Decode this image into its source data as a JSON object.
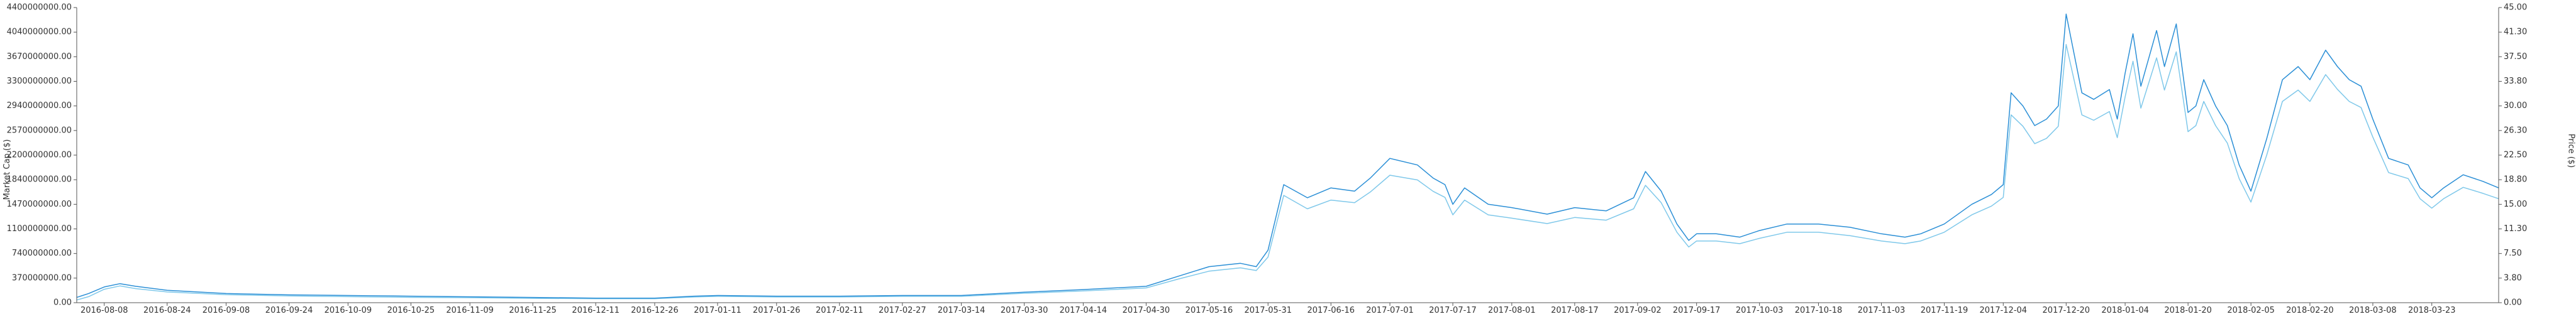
{
  "chart_data": {
    "type": "line",
    "title": "",
    "xlabel": "",
    "ylabel_left": "Market Cap ($)",
    "ylabel_right": "Price ($)",
    "grid": false,
    "legend": "none",
    "ylim_left": [
      0,
      4400000000
    ],
    "ylim_right": [
      0,
      45
    ],
    "x_range": [
      "2016-08-01",
      "2018-04-09"
    ],
    "left_ticks": [
      "0.00",
      "370000000.00",
      "740000000.00",
      "1100000000.00",
      "1470000000.00",
      "1840000000.00",
      "2200000000.00",
      "2570000000.00",
      "2940000000.00",
      "3300000000.00",
      "3670000000.00",
      "4040000000.00",
      "4400000000.00"
    ],
    "right_ticks": [
      "0.00",
      "3.80",
      "7.50",
      "11.30",
      "15.00",
      "18.80",
      "22.50",
      "26.30",
      "30.00",
      "33.80",
      "37.50",
      "41.30",
      "45.00"
    ],
    "x_ticks": [
      "2016-08-08",
      "2016-08-24",
      "2016-09-08",
      "2016-09-24",
      "2016-10-09",
      "2016-10-25",
      "2016-11-09",
      "2016-11-25",
      "2016-12-11",
      "2016-12-26",
      "2017-01-11",
      "2017-01-26",
      "2017-02-11",
      "2017-02-27",
      "2017-03-14",
      "2017-03-30",
      "2017-04-14",
      "2017-04-30",
      "2017-05-16",
      "2017-05-31",
      "2017-06-16",
      "2017-07-01",
      "2017-07-17",
      "2017-08-01",
      "2017-08-17",
      "2017-09-02",
      "2017-09-17",
      "2017-10-03",
      "2017-10-18",
      "2017-11-03",
      "2017-11-19",
      "2017-12-04",
      "2017-12-20",
      "2018-01-04",
      "2018-01-20",
      "2018-02-05",
      "2018-02-20",
      "2018-03-08",
      "2018-03-23"
    ],
    "colors": {
      "price": "#2b8fd6",
      "market_cap": "#7fc8ea"
    },
    "series": [
      {
        "axis": "right",
        "x": [
          "2016-08-01",
          "2016-08-04",
          "2016-08-08",
          "2016-08-12",
          "2016-08-16",
          "2016-08-24",
          "2016-09-08",
          "2016-09-24",
          "2016-10-09",
          "2016-10-25",
          "2016-11-09",
          "2016-11-25",
          "2016-12-11",
          "2016-12-26",
          "2017-01-05",
          "2017-01-11",
          "2017-01-26",
          "2017-02-11",
          "2017-02-27",
          "2017-03-14",
          "2017-03-30",
          "2017-04-14",
          "2017-04-30",
          "2017-05-08",
          "2017-05-16",
          "2017-05-24",
          "2017-05-28",
          "2017-05-31",
          "2017-06-04",
          "2017-06-10",
          "2017-06-16",
          "2017-06-22",
          "2017-06-26",
          "2017-07-01",
          "2017-07-08",
          "2017-07-12",
          "2017-07-15",
          "2017-07-17",
          "2017-07-20",
          "2017-07-26",
          "2017-08-01",
          "2017-08-10",
          "2017-08-17",
          "2017-08-25",
          "2017-09-01",
          "2017-09-04",
          "2017-09-08",
          "2017-09-12",
          "2017-09-15",
          "2017-09-17",
          "2017-09-22",
          "2017-09-28",
          "2017-10-03",
          "2017-10-10",
          "2017-10-18",
          "2017-10-26",
          "2017-11-03",
          "2017-11-09",
          "2017-11-13",
          "2017-11-19",
          "2017-11-26",
          "2017-12-01",
          "2017-12-04",
          "2017-12-06",
          "2017-12-09",
          "2017-12-12",
          "2017-12-15",
          "2017-12-18",
          "2017-12-20",
          "2017-12-24",
          "2017-12-27",
          "2017-12-31",
          "2018-01-02",
          "2018-01-04",
          "2018-01-06",
          "2018-01-08",
          "2018-01-12",
          "2018-01-14",
          "2018-01-17",
          "2018-01-20",
          "2018-01-22",
          "2018-01-24",
          "2018-01-27",
          "2018-01-30",
          "2018-02-02",
          "2018-02-05",
          "2018-02-09",
          "2018-02-13",
          "2018-02-17",
          "2018-02-20",
          "2018-02-24",
          "2018-02-27",
          "2018-03-02",
          "2018-03-05",
          "2018-03-08",
          "2018-03-12",
          "2018-03-17",
          "2018-03-20",
          "2018-03-23",
          "2018-03-26",
          "2018-03-31",
          "2018-04-05",
          "2018-04-09"
        ],
        "values": [
          0.8,
          1.4,
          2.4,
          2.9,
          2.5,
          1.9,
          1.4,
          1.2,
          1.1,
          1.0,
          0.9,
          0.8,
          0.7,
          0.7,
          1.0,
          1.1,
          1.0,
          1.0,
          1.1,
          1.1,
          1.6,
          2.0,
          2.5,
          4.0,
          5.5,
          6.0,
          5.5,
          8.0,
          18.0,
          16.0,
          17.5,
          17.0,
          19.0,
          22.0,
          21.0,
          19.0,
          18.0,
          15.0,
          17.5,
          15.0,
          14.5,
          13.5,
          14.5,
          14.0,
          16.0,
          20.0,
          17.0,
          12.0,
          9.5,
          10.5,
          10.5,
          10.0,
          11.0,
          12.0,
          12.0,
          11.5,
          10.5,
          10.0,
          10.5,
          12.0,
          15.0,
          16.5,
          18.0,
          32.0,
          30.0,
          27.0,
          28.0,
          30.0,
          44.0,
          32.0,
          31.0,
          32.5,
          28.0,
          35.0,
          41.0,
          33.0,
          41.5,
          36.0,
          42.5,
          29.0,
          30.0,
          34.0,
          30.0,
          27.0,
          21.0,
          17.0,
          25.0,
          34.0,
          36.0,
          34.0,
          38.5,
          36.0,
          34.0,
          33.0,
          28.0,
          22.0,
          21.0,
          17.5,
          16.0,
          17.5,
          19.5,
          18.5,
          17.5
        ]
      },
      {
        "axis": "left",
        "x": [
          "2016-08-01",
          "2016-08-04",
          "2016-08-08",
          "2016-08-12",
          "2016-08-16",
          "2016-08-24",
          "2016-09-08",
          "2016-09-24",
          "2016-10-09",
          "2016-10-25",
          "2016-11-09",
          "2016-11-25",
          "2016-12-11",
          "2016-12-26",
          "2017-01-05",
          "2017-01-11",
          "2017-01-26",
          "2017-02-11",
          "2017-02-27",
          "2017-03-14",
          "2017-03-30",
          "2017-04-14",
          "2017-04-30",
          "2017-05-08",
          "2017-05-16",
          "2017-05-24",
          "2017-05-28",
          "2017-05-31",
          "2017-06-04",
          "2017-06-10",
          "2017-06-16",
          "2017-06-22",
          "2017-06-26",
          "2017-07-01",
          "2017-07-08",
          "2017-07-12",
          "2017-07-15",
          "2017-07-17",
          "2017-07-20",
          "2017-07-26",
          "2017-08-01",
          "2017-08-10",
          "2017-08-17",
          "2017-08-25",
          "2017-09-01",
          "2017-09-04",
          "2017-09-08",
          "2017-09-12",
          "2017-09-15",
          "2017-09-17",
          "2017-09-22",
          "2017-09-28",
          "2017-10-03",
          "2017-10-10",
          "2017-10-18",
          "2017-10-26",
          "2017-11-03",
          "2017-11-09",
          "2017-11-13",
          "2017-11-19",
          "2017-11-26",
          "2017-12-01",
          "2017-12-04",
          "2017-12-06",
          "2017-12-09",
          "2017-12-12",
          "2017-12-15",
          "2017-12-18",
          "2017-12-20",
          "2017-12-24",
          "2017-12-27",
          "2017-12-31",
          "2018-01-02",
          "2018-01-04",
          "2018-01-06",
          "2018-01-08",
          "2018-01-12",
          "2018-01-14",
          "2018-01-17",
          "2018-01-20",
          "2018-01-22",
          "2018-01-24",
          "2018-01-27",
          "2018-01-30",
          "2018-02-02",
          "2018-02-05",
          "2018-02-09",
          "2018-02-13",
          "2018-02-17",
          "2018-02-20",
          "2018-02-24",
          "2018-02-27",
          "2018-03-02",
          "2018-03-05",
          "2018-03-08",
          "2018-03-12",
          "2018-03-17",
          "2018-03-20",
          "2018-03-23",
          "2018-03-26",
          "2018-03-31",
          "2018-04-05",
          "2018-04-09"
        ],
        "values": [
          40000000,
          90000000,
          200000000,
          250000000,
          210000000,
          160000000,
          120000000,
          100000000,
          90000000,
          80000000,
          75000000,
          65000000,
          60000000,
          60000000,
          85000000,
          95000000,
          85000000,
          85000000,
          95000000,
          95000000,
          140000000,
          175000000,
          220000000,
          350000000,
          470000000,
          520000000,
          480000000,
          680000000,
          1600000000,
          1400000000,
          1530000000,
          1490000000,
          1650000000,
          1900000000,
          1830000000,
          1660000000,
          1570000000,
          1310000000,
          1530000000,
          1310000000,
          1260000000,
          1180000000,
          1270000000,
          1230000000,
          1400000000,
          1750000000,
          1490000000,
          1050000000,
          830000000,
          920000000,
          920000000,
          880000000,
          960000000,
          1050000000,
          1050000000,
          1000000000,
          920000000,
          880000000,
          920000000,
          1050000000,
          1310000000,
          1440000000,
          1570000000,
          2800000000,
          2630000000,
          2370000000,
          2450000000,
          2630000000,
          3850000000,
          2800000000,
          2720000000,
          2850000000,
          2460000000,
          3070000000,
          3600000000,
          2900000000,
          3650000000,
          3170000000,
          3740000000,
          2550000000,
          2640000000,
          3000000000,
          2640000000,
          2380000000,
          1850000000,
          1500000000,
          2200000000,
          3000000000,
          3170000000,
          3000000000,
          3400000000,
          3180000000,
          3000000000,
          2910000000,
          2470000000,
          1940000000,
          1850000000,
          1550000000,
          1410000000,
          1550000000,
          1720000000,
          1630000000,
          1550000000
        ]
      }
    ]
  }
}
